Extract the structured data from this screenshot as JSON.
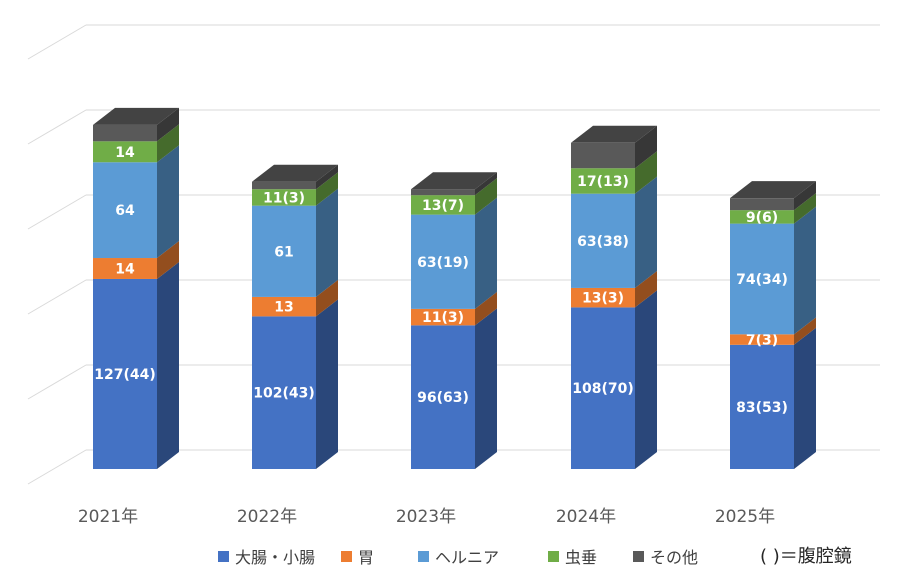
{
  "chart_data": {
    "type": "bar",
    "stacked": true,
    "three_d": true,
    "categories": [
      "2021年",
      "2022年",
      "2023年",
      "2024年",
      "2025年"
    ],
    "series": [
      {
        "name": "大腸・小腸",
        "color": "#4472C4",
        "values": [
          127,
          102,
          96,
          108,
          83
        ],
        "labels": [
          "127(44)",
          "102(43)",
          "96(63)",
          "108(70)",
          "83(53)"
        ]
      },
      {
        "name": "胃",
        "color": "#ED7D31",
        "values": [
          14,
          13,
          11,
          13,
          7
        ],
        "labels": [
          "14",
          "13",
          "11(3)",
          "13(3)",
          "7(3)"
        ]
      },
      {
        "name": "ヘルニア",
        "color": "#5B9BD5",
        "values": [
          64,
          61,
          63,
          63,
          74
        ],
        "labels": [
          "64",
          "61",
          "63(19)",
          "63(38)",
          "74(34)"
        ]
      },
      {
        "name": "虫垂",
        "color": "#70AD47",
        "values": [
          14,
          11,
          13,
          17,
          9
        ],
        "labels": [
          "14",
          "11(3)",
          "13(7)",
          "17(13)",
          "9(6)"
        ]
      },
      {
        "name": "その他",
        "color": "#595959",
        "values": [
          11,
          5,
          4,
          17,
          8
        ],
        "labels": [
          "",
          "",
          "",
          "",
          ""
        ]
      }
    ],
    "ylim": [
      0,
      270
    ],
    "grid": true,
    "legend_position": "bottom",
    "note": "(   )＝腹腔鏡"
  }
}
